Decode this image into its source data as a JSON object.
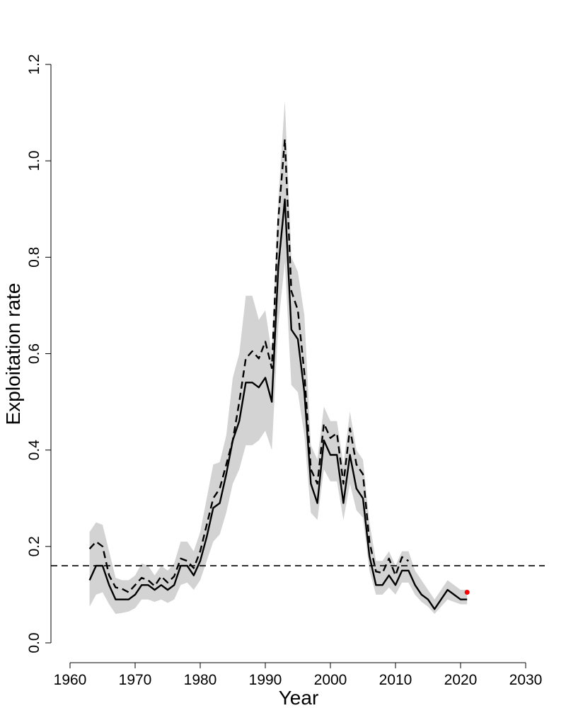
{
  "chart_data": {
    "type": "line",
    "title": "",
    "xlabel": "Year",
    "ylabel": "Exploitation rate",
    "xlim": [
      1960,
      2030
    ],
    "ylim": [
      0,
      1.2
    ],
    "x_ticks": [
      1960,
      1970,
      1980,
      1990,
      2000,
      2010,
      2020,
      2030
    ],
    "y_ticks": [
      0.0,
      0.2,
      0.4,
      0.6,
      0.8,
      1.0,
      1.2
    ],
    "x_tick_labels": [
      "1960",
      "1970",
      "1980",
      "1990",
      "2000",
      "2010",
      "2020",
      "2030"
    ],
    "y_tick_labels": [
      "0.0",
      "0.2",
      "0.4",
      "0.6",
      "0.8",
      "1.0",
      "1.2"
    ],
    "grid": false,
    "reference_line": {
      "y": 0.16,
      "style": "dashed",
      "color": "#000000"
    },
    "band_color": "#d3d3d3",
    "point_color": "#ff0000",
    "point": {
      "x": 2021,
      "y": 0.105
    },
    "series": [
      {
        "style": "dashed",
        "x": [
          1963,
          1964,
          1965,
          1966,
          1967,
          1968,
          1969,
          1970,
          1971,
          1972,
          1973,
          1974,
          1975,
          1976,
          1977,
          1978,
          1979,
          1980,
          1981,
          1982,
          1983,
          1984,
          1985,
          1986,
          1987,
          1988,
          1989,
          1990,
          1991,
          1992,
          1993,
          1994,
          1995,
          1996,
          1997,
          1998,
          1999,
          2000,
          2001,
          2002,
          2003,
          2004,
          2005,
          2006,
          2007,
          2008,
          2009,
          2010,
          2011,
          2012
        ],
        "y": [
          0.195,
          0.21,
          0.2,
          0.14,
          0.115,
          0.112,
          0.105,
          0.12,
          0.135,
          0.13,
          0.118,
          0.138,
          0.125,
          0.138,
          0.175,
          0.17,
          0.155,
          0.19,
          0.245,
          0.3,
          0.32,
          0.37,
          0.42,
          0.5,
          0.59,
          0.605,
          0.59,
          0.625,
          0.57,
          0.88,
          1.045,
          0.73,
          0.69,
          0.56,
          0.36,
          0.33,
          0.455,
          0.425,
          0.435,
          0.33,
          0.445,
          0.37,
          0.35,
          0.21,
          0.148,
          0.145,
          0.175,
          0.14,
          0.178,
          0.17
        ]
      },
      {
        "style": "solid",
        "x": [
          1963,
          1964,
          1965,
          1966,
          1967,
          1968,
          1969,
          1970,
          1971,
          1972,
          1973,
          1974,
          1975,
          1976,
          1977,
          1978,
          1979,
          1980,
          1981,
          1982,
          1983,
          1984,
          1985,
          1986,
          1987,
          1988,
          1989,
          1990,
          1991,
          1992,
          1993,
          1994,
          1995,
          1996,
          1997,
          1998,
          1999,
          2000,
          2001,
          2002,
          2003,
          2004,
          2005,
          2006,
          2007,
          2008,
          2009,
          2010,
          2011,
          2012,
          2013,
          2014,
          2015,
          2016,
          2017,
          2018,
          2019,
          2020,
          2021
        ],
        "y": [
          0.13,
          0.16,
          0.16,
          0.12,
          0.09,
          0.09,
          0.09,
          0.1,
          0.12,
          0.12,
          0.11,
          0.12,
          0.11,
          0.12,
          0.16,
          0.16,
          0.14,
          0.17,
          0.22,
          0.28,
          0.29,
          0.35,
          0.42,
          0.46,
          0.54,
          0.54,
          0.53,
          0.55,
          0.5,
          0.78,
          0.92,
          0.65,
          0.63,
          0.52,
          0.33,
          0.29,
          0.42,
          0.39,
          0.39,
          0.29,
          0.39,
          0.32,
          0.3,
          0.18,
          0.12,
          0.12,
          0.14,
          0.12,
          0.15,
          0.15,
          0.12,
          0.1,
          0.09,
          0.07,
          0.09,
          0.11,
          0.1,
          0.09,
          0.09
        ]
      }
    ],
    "band": {
      "x": [
        1963,
        1964,
        1965,
        1966,
        1967,
        1968,
        1969,
        1970,
        1971,
        1972,
        1973,
        1974,
        1975,
        1976,
        1977,
        1978,
        1979,
        1980,
        1981,
        1982,
        1983,
        1984,
        1985,
        1986,
        1987,
        1988,
        1989,
        1990,
        1991,
        1992,
        1993,
        1994,
        1995,
        1996,
        1997,
        1998,
        1999,
        2000,
        2001,
        2002,
        2003,
        2004,
        2005,
        2006,
        2007,
        2008,
        2009,
        2010,
        2011,
        2012,
        2013,
        2014,
        2015,
        2016,
        2017,
        2018,
        2019,
        2020,
        2021
      ],
      "upper": [
        0.23,
        0.25,
        0.245,
        0.19,
        0.135,
        0.13,
        0.13,
        0.14,
        0.165,
        0.16,
        0.14,
        0.16,
        0.15,
        0.165,
        0.21,
        0.21,
        0.19,
        0.23,
        0.3,
        0.37,
        0.375,
        0.43,
        0.55,
        0.6,
        0.72,
        0.72,
        0.67,
        0.69,
        0.6,
        0.92,
        1.125,
        0.8,
        0.77,
        0.68,
        0.41,
        0.38,
        0.49,
        0.46,
        0.46,
        0.37,
        0.48,
        0.4,
        0.38,
        0.25,
        0.17,
        0.17,
        0.19,
        0.16,
        0.19,
        0.19,
        0.15,
        0.13,
        0.11,
        0.09,
        0.11,
        0.13,
        0.12,
        0.11,
        0.11
      ],
      "lower": [
        0.075,
        0.1,
        0.105,
        0.08,
        0.06,
        0.062,
        0.065,
        0.072,
        0.09,
        0.09,
        0.085,
        0.09,
        0.083,
        0.09,
        0.12,
        0.125,
        0.11,
        0.13,
        0.17,
        0.21,
        0.225,
        0.27,
        0.33,
        0.36,
        0.41,
        0.41,
        0.42,
        0.44,
        0.4,
        0.66,
        0.79,
        0.535,
        0.52,
        0.43,
        0.27,
        0.255,
        0.36,
        0.335,
        0.335,
        0.255,
        0.33,
        0.275,
        0.26,
        0.15,
        0.1,
        0.1,
        0.115,
        0.1,
        0.125,
        0.125,
        0.1,
        0.085,
        0.075,
        0.06,
        0.075,
        0.09,
        0.085,
        0.08,
        0.08
      ]
    }
  }
}
